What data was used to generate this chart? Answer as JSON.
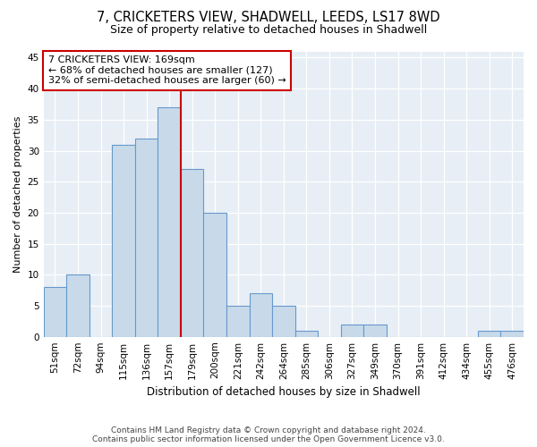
{
  "title": "7, CRICKETERS VIEW, SHADWELL, LEEDS, LS17 8WD",
  "subtitle": "Size of property relative to detached houses in Shadwell",
  "xlabel": "Distribution of detached houses by size in Shadwell",
  "ylabel": "Number of detached properties",
  "categories": [
    "51sqm",
    "72sqm",
    "94sqm",
    "115sqm",
    "136sqm",
    "157sqm",
    "179sqm",
    "200sqm",
    "221sqm",
    "242sqm",
    "264sqm",
    "285sqm",
    "306sqm",
    "327sqm",
    "349sqm",
    "370sqm",
    "391sqm",
    "412sqm",
    "434sqm",
    "455sqm",
    "476sqm"
  ],
  "values": [
    8,
    10,
    0,
    31,
    32,
    37,
    27,
    20,
    5,
    7,
    5,
    1,
    0,
    2,
    2,
    0,
    0,
    0,
    0,
    1,
    1
  ],
  "bar_color": "#c8daea",
  "bar_edge_color": "#6699cc",
  "vline_color": "#cc0000",
  "vline_index": 6,
  "annotation_text": "7 CRICKETERS VIEW: 169sqm\n← 68% of detached houses are smaller (127)\n32% of semi-detached houses are larger (60) →",
  "annotation_box_color": "#ffffff",
  "annotation_box_edge": "#cc0000",
  "ylim": [
    0,
    46
  ],
  "yticks": [
    0,
    5,
    10,
    15,
    20,
    25,
    30,
    35,
    40,
    45
  ],
  "title_fontsize": 10.5,
  "subtitle_fontsize": 9,
  "footer": "Contains HM Land Registry data © Crown copyright and database right 2024.\nContains public sector information licensed under the Open Government Licence v3.0.",
  "background_color": "#ffffff",
  "plot_background": "#e8eef5"
}
